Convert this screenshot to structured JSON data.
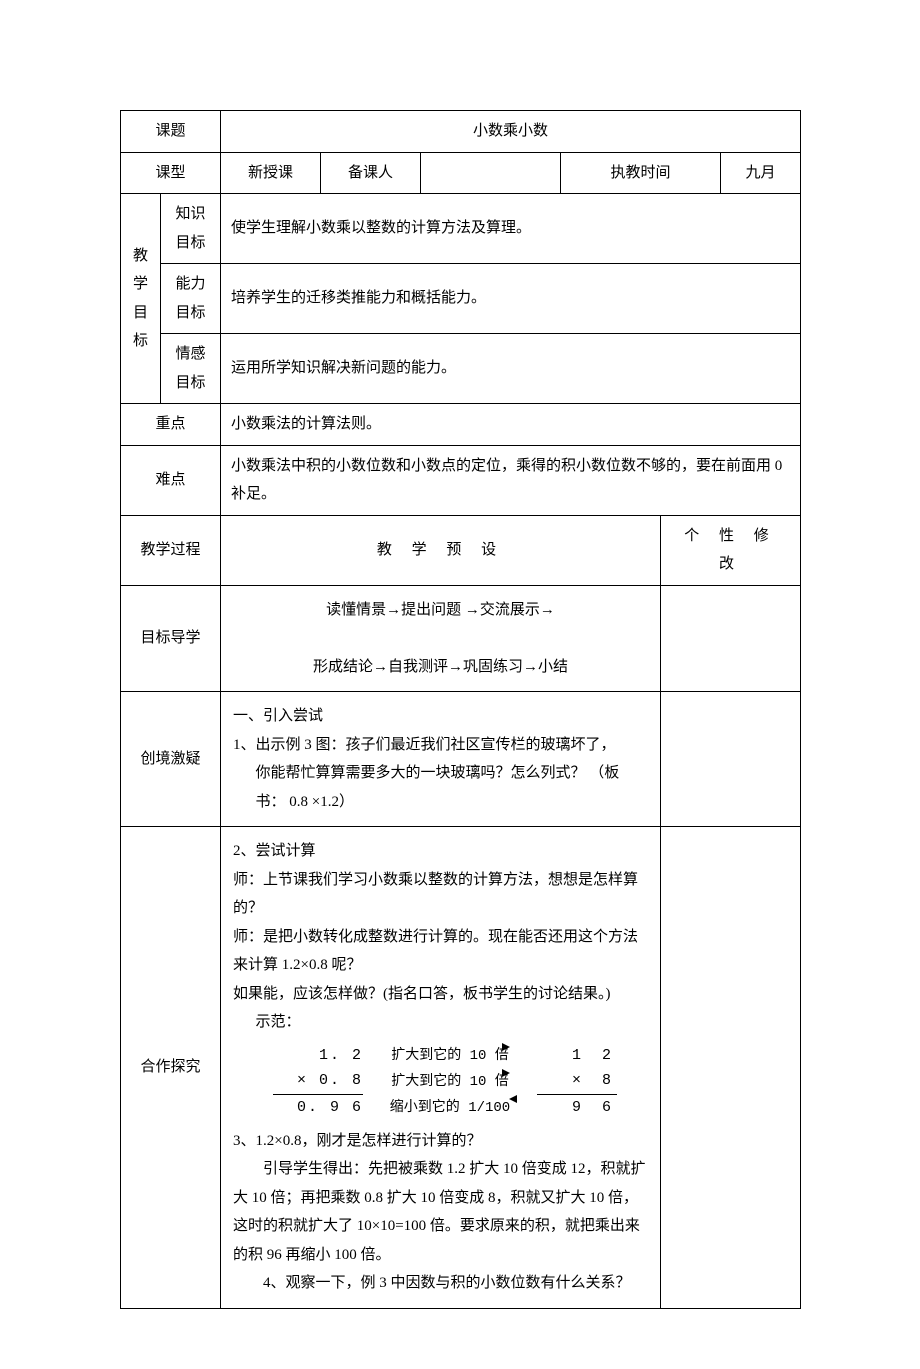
{
  "header": {
    "topic_label": "课题",
    "topic_value": "小数乘小数",
    "type_label": "课型",
    "type_value": "新授课",
    "preparer_label": "备课人",
    "preparer_value": "",
    "teachtime_label": "执教时间",
    "teachtime_value": "九月"
  },
  "goals": {
    "section_label": "教学目标",
    "rows": [
      {
        "label": "知识目标",
        "text": "使学生理解小数乘以整数的计算方法及算理。"
      },
      {
        "label": "能力目标",
        "text": "培养学生的迁移类推能力和概括能力。"
      },
      {
        "label": "情感目标",
        "text": "运用所学知识解决新问题的能力。"
      }
    ]
  },
  "keypoint": {
    "label": "重点",
    "text": "小数乘法的计算法则。"
  },
  "difficulty": {
    "label": "难点",
    "text": "小数乘法中积的小数位数和小数点的定位，乘得的积小数位数不够的，要在前面用 0 补足。"
  },
  "process": {
    "col1": "教学过程",
    "col2": "教 学 预 设",
    "col3": "个 性 修 改"
  },
  "guide": {
    "label": "目标导学",
    "line1": "读懂情景→提出问题 →交流展示→",
    "line2": "形成结论→自我测评→巩固练习→小结"
  },
  "stimulate": {
    "label": "创境激疑",
    "title": "一、引入尝试",
    "line1": "1、出示例 3 图：孩子们最近我们社区宣传栏的玻璃坏了，",
    "line2": "你能帮忙算算需要多大的一块玻璃吗？怎么列式？ （板",
    "line3": "书：   0.8 ×1.2）"
  },
  "explore": {
    "label": "合作探究",
    "p2title": "2、尝试计算",
    "p2a": "师：上节课我们学习小数乘以整数的计算方法，想想是怎样算的？",
    "p2b": "师：是把小数转化成整数进行计算的。现在能否还用这个方法来计算 1.2×0.8 呢？",
    "p2c": "如果能，应该怎样做？(指名口答，板书学生的讨论结果。)",
    "demo_label": "示范：",
    "calc": {
      "left": [
        "1. 2",
        "× 0. 8",
        "0. 9  6"
      ],
      "mid": [
        "扩大到它的 10 倍",
        "扩大到它的 10 倍",
        "缩小到它的 1/100"
      ],
      "right": [
        "1  2",
        "×     8",
        "9  6"
      ]
    },
    "p3a": "3、1.2×0.8，刚才是怎样进行计算的？",
    "p3b": "引导学生得出：先把被乘数 1.2 扩大 10 倍变成 12，积就扩大 10 倍；再把乘数 0.8 扩大 10 倍变成 8，积就又扩大 10 倍，这时的积就扩大了 10×10=100 倍。要求原来的积，就把乘出来的积 96 再缩小 100 倍。",
    "p4": "4、观察一下，例 3 中因数与积的小数位数有什么关系？"
  },
  "style": {
    "border_color": "#000000",
    "background_color": "#ffffff",
    "font_family": "SimSun",
    "base_fontsize": 15
  }
}
